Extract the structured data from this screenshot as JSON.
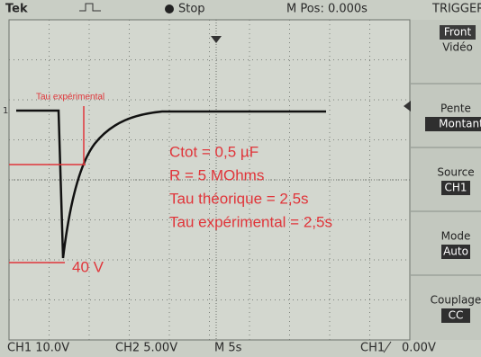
{
  "header": {
    "brand": "Tek",
    "state": "Stop",
    "position": "M Pos: 0.000s",
    "menu_title": "TRIGGER"
  },
  "menu": [
    {
      "label": "Front",
      "value": "Vidéo"
    },
    {
      "label": "Pente",
      "value": "Montant"
    },
    {
      "label": "Source",
      "value": "CH1"
    },
    {
      "label": "Mode",
      "value": "Auto"
    },
    {
      "label": "Couplage",
      "value": "CC"
    }
  ],
  "footer": {
    "ch1": "CH1 10.0V",
    "ch2": "CH2 5.00V",
    "time": "M 5s",
    "trigger_source": "CH1",
    "trigger_level": "0.00V"
  },
  "screen": {
    "channel_marker": "1",
    "tau_label": "Tau expérimental",
    "voltage_label": "40 V",
    "notes": [
      "Ctot = 0,5 µF",
      "R = 5 MOhms",
      "Tau théorique = 2,5s",
      "Tau expérimental = 2,5s"
    ]
  }
}
